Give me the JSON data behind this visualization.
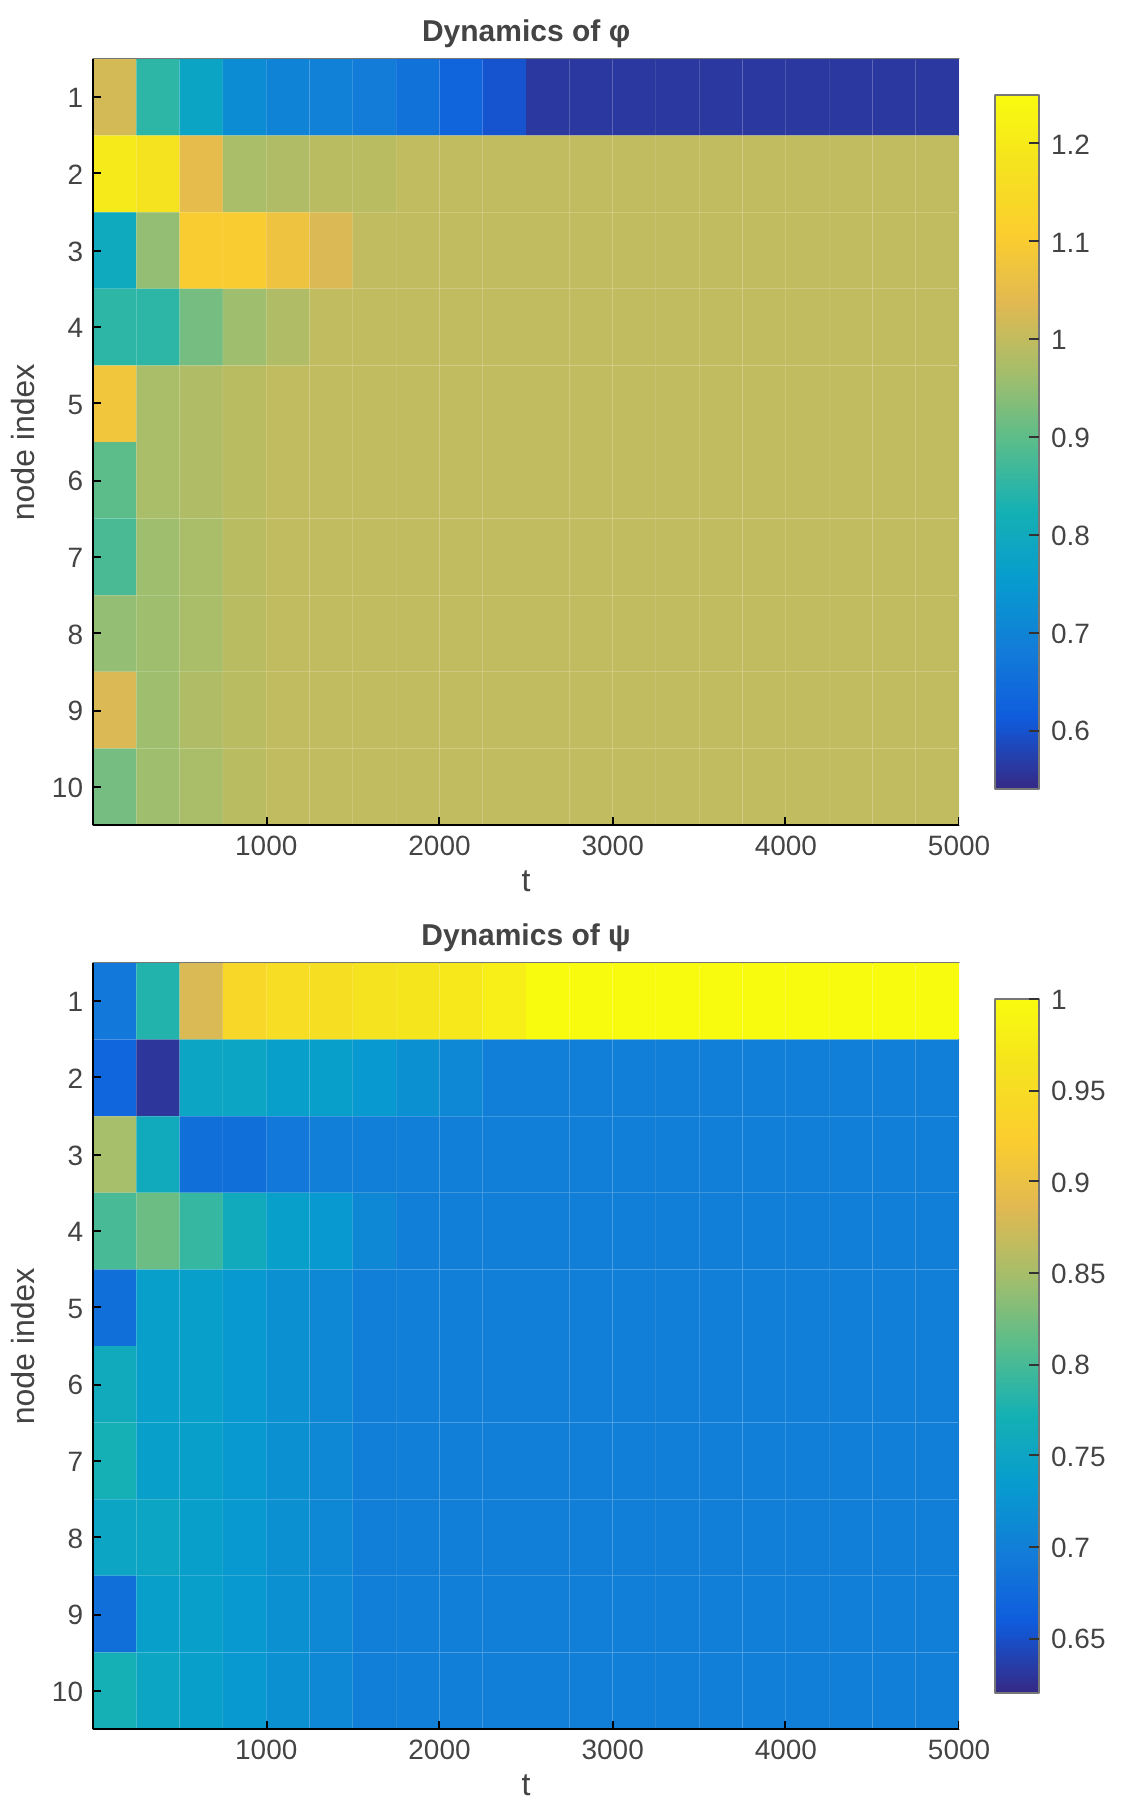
{
  "chart_data": [
    {
      "type": "heatmap",
      "title": "Dynamics of φ",
      "xlabel": "t",
      "ylabel": "node index",
      "x": [
        125,
        375,
        625,
        875,
        1125,
        1375,
        1625,
        1875,
        2125,
        2375,
        2625,
        2875,
        3125,
        3375,
        3625,
        3875,
        4125,
        4375,
        4625,
        4875
      ],
      "xlim": [
        0,
        5000
      ],
      "xticks": [
        1000,
        2000,
        3000,
        4000,
        5000
      ],
      "y_categories": [
        "1",
        "2",
        "3",
        "4",
        "5",
        "6",
        "7",
        "8",
        "9",
        "10"
      ],
      "cells": [
        [
          1.02,
          0.85,
          0.78,
          0.72,
          0.7,
          0.69,
          0.68,
          0.66,
          0.63,
          0.6,
          0.56,
          0.56,
          0.56,
          0.56,
          0.56,
          0.56,
          0.56,
          0.56,
          0.56,
          0.56
        ],
        [
          1.2,
          1.18,
          1.05,
          0.97,
          0.98,
          0.99,
          0.99,
          1.0,
          1.0,
          1.0,
          1.0,
          1.0,
          1.0,
          1.0,
          1.0,
          1.0,
          1.0,
          1.0,
          1.0,
          1.0
        ],
        [
          0.8,
          0.95,
          1.1,
          1.1,
          1.07,
          1.03,
          1.0,
          1.0,
          1.0,
          1.0,
          1.0,
          1.0,
          1.0,
          1.0,
          1.0,
          1.0,
          1.0,
          1.0,
          1.0,
          1.0
        ],
        [
          0.85,
          0.85,
          0.92,
          0.96,
          0.98,
          1.0,
          1.0,
          1.0,
          1.0,
          1.0,
          1.0,
          1.0,
          1.0,
          1.0,
          1.0,
          1.0,
          1.0,
          1.0,
          1.0,
          1.0
        ],
        [
          1.08,
          0.97,
          0.98,
          0.99,
          1.0,
          1.0,
          1.0,
          1.0,
          1.0,
          1.0,
          1.0,
          1.0,
          1.0,
          1.0,
          1.0,
          1.0,
          1.0,
          1.0,
          1.0,
          1.0
        ],
        [
          0.9,
          0.97,
          0.98,
          0.99,
          1.0,
          1.0,
          1.0,
          1.0,
          1.0,
          1.0,
          1.0,
          1.0,
          1.0,
          1.0,
          1.0,
          1.0,
          1.0,
          1.0,
          1.0,
          1.0
        ],
        [
          0.88,
          0.96,
          0.97,
          0.99,
          1.0,
          1.0,
          1.0,
          1.0,
          1.0,
          1.0,
          1.0,
          1.0,
          1.0,
          1.0,
          1.0,
          1.0,
          1.0,
          1.0,
          1.0,
          1.0
        ],
        [
          0.95,
          0.96,
          0.97,
          0.99,
          1.0,
          1.0,
          1.0,
          1.0,
          1.0,
          1.0,
          1.0,
          1.0,
          1.0,
          1.0,
          1.0,
          1.0,
          1.0,
          1.0,
          1.0,
          1.0
        ],
        [
          1.03,
          0.96,
          0.98,
          0.99,
          1.0,
          1.0,
          1.0,
          1.0,
          1.0,
          1.0,
          1.0,
          1.0,
          1.0,
          1.0,
          1.0,
          1.0,
          1.0,
          1.0,
          1.0,
          1.0
        ],
        [
          0.92,
          0.96,
          0.97,
          0.99,
          1.0,
          1.0,
          1.0,
          1.0,
          1.0,
          1.0,
          1.0,
          1.0,
          1.0,
          1.0,
          1.0,
          1.0,
          1.0,
          1.0,
          1.0,
          1.0
        ]
      ],
      "clim": [
        0.54,
        1.25
      ],
      "cticks": [
        0.6,
        0.7,
        0.8,
        0.9,
        1,
        1.1,
        1.2
      ]
    },
    {
      "type": "heatmap",
      "title": "Dynamics of ψ",
      "xlabel": "t",
      "ylabel": "node index",
      "x": [
        125,
        375,
        625,
        875,
        1125,
        1375,
        1625,
        1875,
        2125,
        2375,
        2625,
        2875,
        3125,
        3375,
        3625,
        3875,
        4125,
        4375,
        4625,
        4875
      ],
      "xlim": [
        0,
        5000
      ],
      "xticks": [
        1000,
        2000,
        3000,
        4000,
        5000
      ],
      "y_categories": [
        "1",
        "2",
        "3",
        "4",
        "5",
        "6",
        "7",
        "8",
        "9",
        "10"
      ],
      "cells": [
        [
          0.69,
          0.78,
          0.88,
          0.94,
          0.95,
          0.955,
          0.96,
          0.965,
          0.97,
          0.98,
          1,
          1,
          1,
          1,
          1,
          1,
          1,
          1,
          1,
          1
        ],
        [
          0.67,
          0.63,
          0.75,
          0.75,
          0.74,
          0.74,
          0.73,
          0.72,
          0.71,
          0.7,
          0.7,
          0.7,
          0.7,
          0.7,
          0.7,
          0.7,
          0.7,
          0.7,
          0.7,
          0.7
        ],
        [
          0.85,
          0.76,
          0.68,
          0.68,
          0.69,
          0.7,
          0.7,
          0.7,
          0.7,
          0.7,
          0.7,
          0.7,
          0.7,
          0.7,
          0.7,
          0.7,
          0.7,
          0.7,
          0.7,
          0.7
        ],
        [
          0.8,
          0.82,
          0.79,
          0.76,
          0.74,
          0.73,
          0.71,
          0.7,
          0.7,
          0.7,
          0.7,
          0.7,
          0.7,
          0.7,
          0.7,
          0.7,
          0.7,
          0.7,
          0.7,
          0.7
        ],
        [
          0.68,
          0.74,
          0.74,
          0.73,
          0.72,
          0.71,
          0.7,
          0.7,
          0.7,
          0.7,
          0.7,
          0.7,
          0.7,
          0.7,
          0.7,
          0.7,
          0.7,
          0.7,
          0.7,
          0.7
        ],
        [
          0.76,
          0.74,
          0.74,
          0.73,
          0.72,
          0.71,
          0.7,
          0.7,
          0.7,
          0.7,
          0.7,
          0.7,
          0.7,
          0.7,
          0.7,
          0.7,
          0.7,
          0.7,
          0.7,
          0.7
        ],
        [
          0.77,
          0.74,
          0.74,
          0.73,
          0.72,
          0.71,
          0.7,
          0.7,
          0.7,
          0.7,
          0.7,
          0.7,
          0.7,
          0.7,
          0.7,
          0.7,
          0.7,
          0.7,
          0.7,
          0.7
        ],
        [
          0.75,
          0.75,
          0.74,
          0.73,
          0.72,
          0.71,
          0.7,
          0.7,
          0.7,
          0.7,
          0.7,
          0.7,
          0.7,
          0.7,
          0.7,
          0.7,
          0.7,
          0.7,
          0.7,
          0.7
        ],
        [
          0.68,
          0.74,
          0.74,
          0.73,
          0.72,
          0.71,
          0.7,
          0.7,
          0.7,
          0.7,
          0.7,
          0.7,
          0.7,
          0.7,
          0.7,
          0.7,
          0.7,
          0.7,
          0.7,
          0.7
        ],
        [
          0.77,
          0.75,
          0.74,
          0.73,
          0.72,
          0.71,
          0.7,
          0.7,
          0.7,
          0.7,
          0.7,
          0.7,
          0.7,
          0.7,
          0.7,
          0.7,
          0.7,
          0.7,
          0.7,
          0.7
        ]
      ],
      "clim": [
        0.62,
        1
      ],
      "cticks": [
        0.65,
        0.7,
        0.75,
        0.8,
        0.85,
        0.9,
        0.95,
        1
      ]
    }
  ]
}
